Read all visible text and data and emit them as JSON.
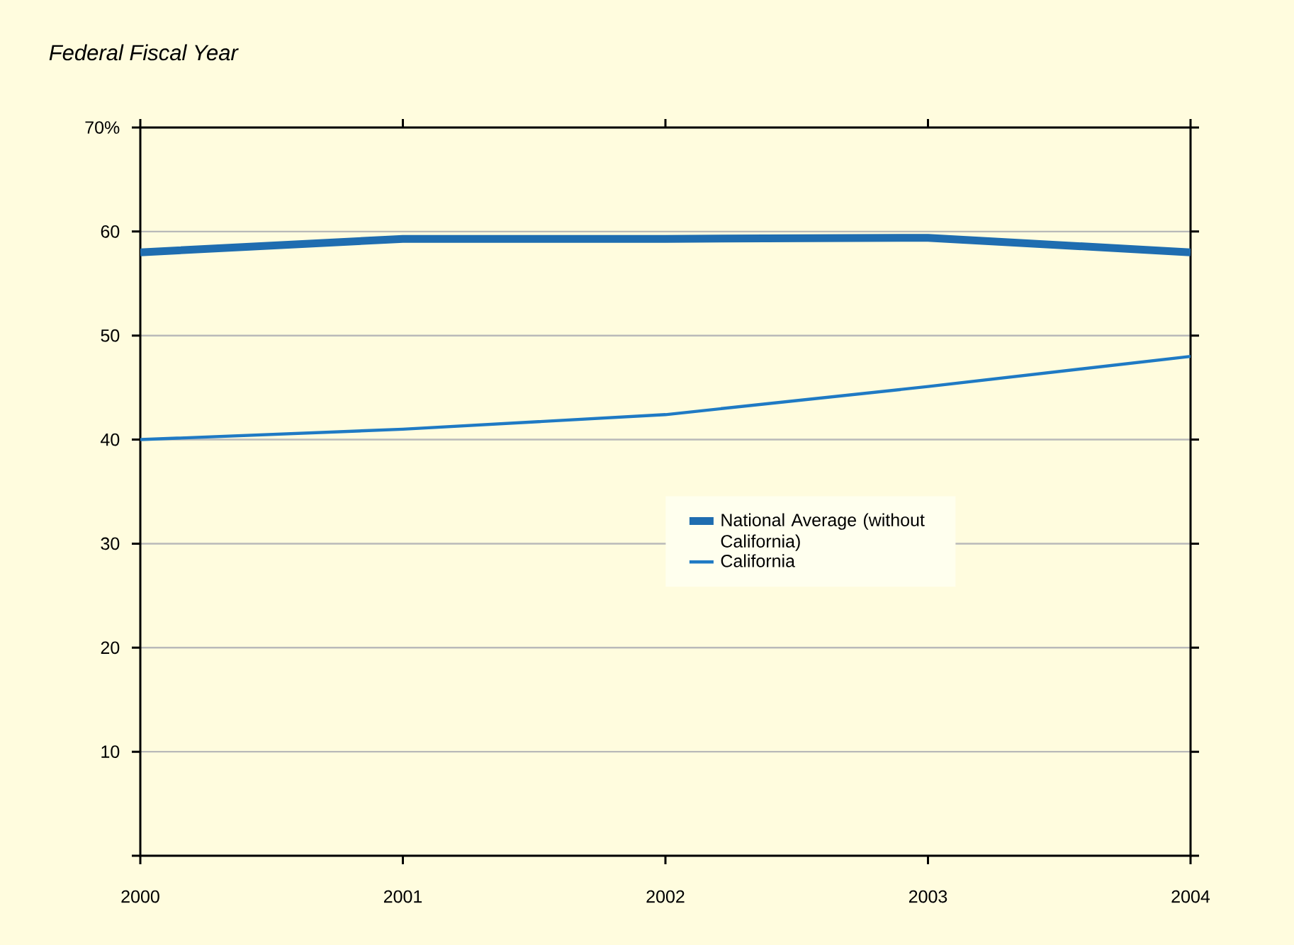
{
  "chart_data": {
    "type": "line",
    "title": "*Federal Fiscal Year*",
    "categories": [
      "2000",
      "2001",
      "2002",
      "2003",
      "2004"
    ],
    "series": [
      {
        "name": "National Average (without California)",
        "color": "#1f6db0",
        "values": [
          58.0,
          59.3,
          59.3,
          59.4,
          58.0
        ]
      },
      {
        "name": "California",
        "color": "#1f7ac4",
        "values": [
          40,
          41,
          42.4,
          45.1,
          48.0
        ]
      }
    ],
    "ylim": [
      0,
      70
    ],
    "yticks": [
      {
        "value": 0,
        "label": null
      },
      10,
      20,
      30,
      40,
      50,
      60,
      {
        "value": 70,
        "label": "70%"
      }
    ],
    "grid": "y",
    "legend": "center",
    "marker": "none",
    "line_style": "solid"
  }
}
